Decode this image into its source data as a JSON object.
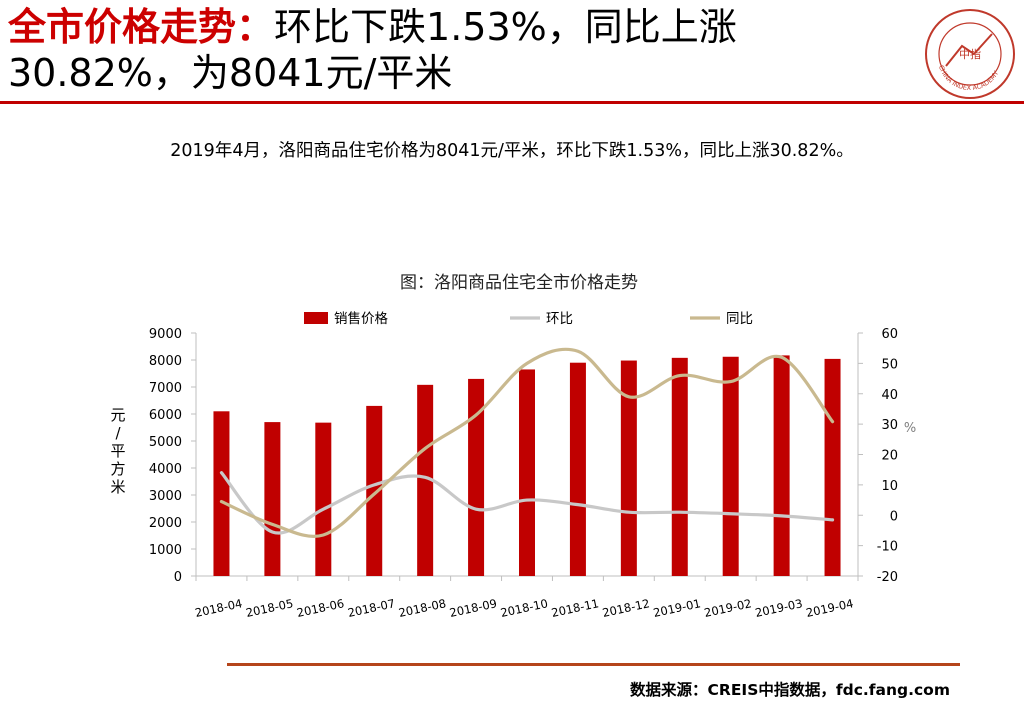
{
  "header": {
    "title_red": "全市价格走势：",
    "title_rest_line1": "环比下跌1.53%，同比上涨",
    "title_line2": "30.82%，为8041元/平米"
  },
  "logo": {
    "icon": "china-index-academy-seal-icon",
    "center_text": "中指",
    "ring_text": "CHINA INDEX ACADEMY",
    "color": "#c0392b"
  },
  "summary": "2019年4月，洛阳商品住宅价格为8041元/平米，环比下跌1.53%，同比上涨30.82%。",
  "source": "数据来源：CREIS中指数据，fdc.fang.com",
  "colors": {
    "title_red": "#cc0000",
    "bar": "#c00000",
    "mom_line": "#c8c8c8",
    "yoy_line": "#c9b98f",
    "rule": "#c00000",
    "bottom_rule": "#b5451b"
  },
  "chart_data": {
    "type": "bar",
    "title": "图：洛阳商品住宅全市价格走势",
    "categories": [
      "2018-04",
      "2018-05",
      "2018-06",
      "2018-07",
      "2018-08",
      "2018-09",
      "2018-10",
      "2018-11",
      "2018-12",
      "2019-01",
      "2019-02",
      "2019-03",
      "2019-04"
    ],
    "series": [
      {
        "name": "销售价格",
        "type": "bar",
        "axis": "left",
        "values": [
          6100,
          5700,
          5680,
          6300,
          7080,
          7300,
          7650,
          7900,
          7980,
          8080,
          8120,
          8170,
          8041
        ]
      },
      {
        "name": "环比",
        "type": "line",
        "axis": "right",
        "values": [
          14,
          -5.5,
          2,
          10,
          12.5,
          2,
          5,
          3.5,
          1,
          1,
          0.5,
          -0.2,
          -1.53
        ]
      },
      {
        "name": "同比",
        "type": "line",
        "axis": "right",
        "values": [
          4.5,
          -3,
          -6.5,
          7,
          22,
          33,
          50,
          54,
          39,
          46,
          44,
          52,
          30.82
        ]
      }
    ],
    "ylabel": "元/平方米",
    "y2label": "%",
    "ylim": [
      0,
      9000
    ],
    "y2lim": [
      -20,
      60
    ],
    "yticks": [
      "0",
      "1000",
      "2000",
      "3000",
      "4000",
      "5000",
      "6000",
      "7000",
      "8000",
      "9000"
    ],
    "y2ticks": [
      "-20",
      "-10",
      "0",
      "10",
      "20",
      "30",
      "40",
      "50",
      "60"
    ],
    "legend_position": "top-center",
    "grid": false
  }
}
